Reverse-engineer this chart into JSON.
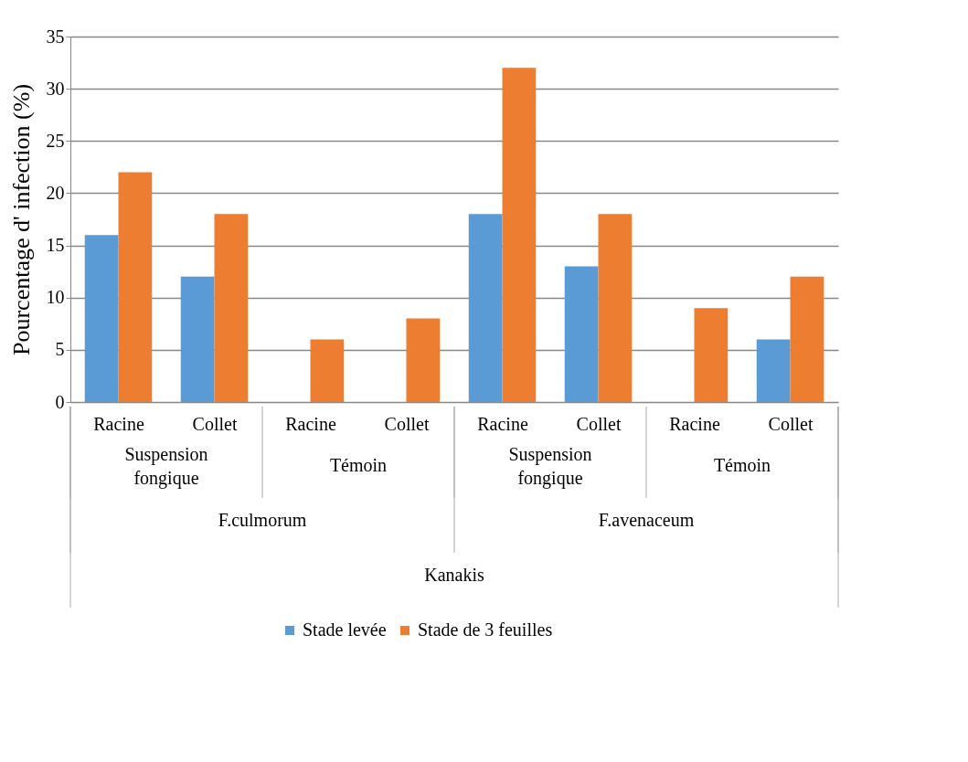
{
  "chart_data": {
    "type": "bar",
    "ylabel": "Pourcentage d' infection (%)",
    "categories": [
      "Racine",
      "Collet",
      "Racine",
      "Collet",
      "Racine",
      "Collet",
      "Racine",
      "Collet"
    ],
    "series": [
      {
        "name": "Stade levée",
        "color": "#5b9bd5",
        "values": [
          16,
          12,
          0,
          0,
          18,
          13,
          0,
          6
        ]
      },
      {
        "name": "Stade de 3 feuilles",
        "color": "#ed7d31",
        "values": [
          22,
          18,
          6,
          8,
          32,
          18,
          9,
          12
        ]
      }
    ],
    "annotations": [
      "Suspension fongique",
      "Témoin",
      "Suspension fongique",
      "Témoin",
      "F.culmorum",
      "F.avenaceum",
      "Kanakis"
    ],
    "ylim": [
      0,
      35
    ],
    "yticks": [
      0,
      5,
      10,
      15,
      20,
      25,
      30,
      35
    ],
    "grid": "y",
    "legend": "bottom"
  }
}
